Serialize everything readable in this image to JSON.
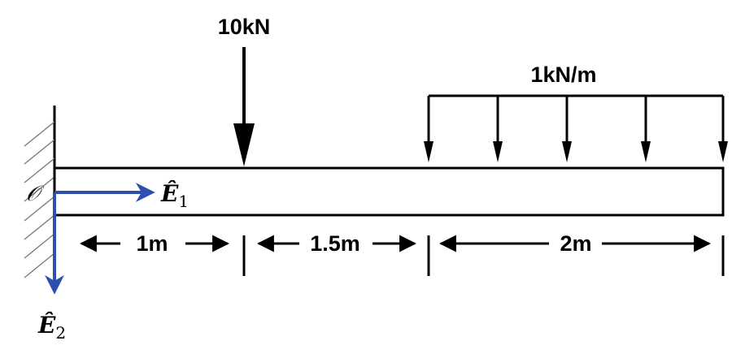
{
  "point_load": {
    "label": "10kN"
  },
  "distributed_load": {
    "label": "1kN/m"
  },
  "dimensions": [
    {
      "label": "1m"
    },
    {
      "label": "1.5m"
    },
    {
      "label": "2m"
    }
  ],
  "origin": {
    "label": "𝒪"
  },
  "axes": {
    "e1": {
      "symbol": "Ê",
      "subscript": "1"
    },
    "e2": {
      "symbol": "Ê",
      "subscript": "2"
    },
    "color": "#2f4fb0"
  },
  "colors": {
    "ink": "#000000",
    "axis": "#2f4fb0",
    "hatch": "#777777"
  }
}
